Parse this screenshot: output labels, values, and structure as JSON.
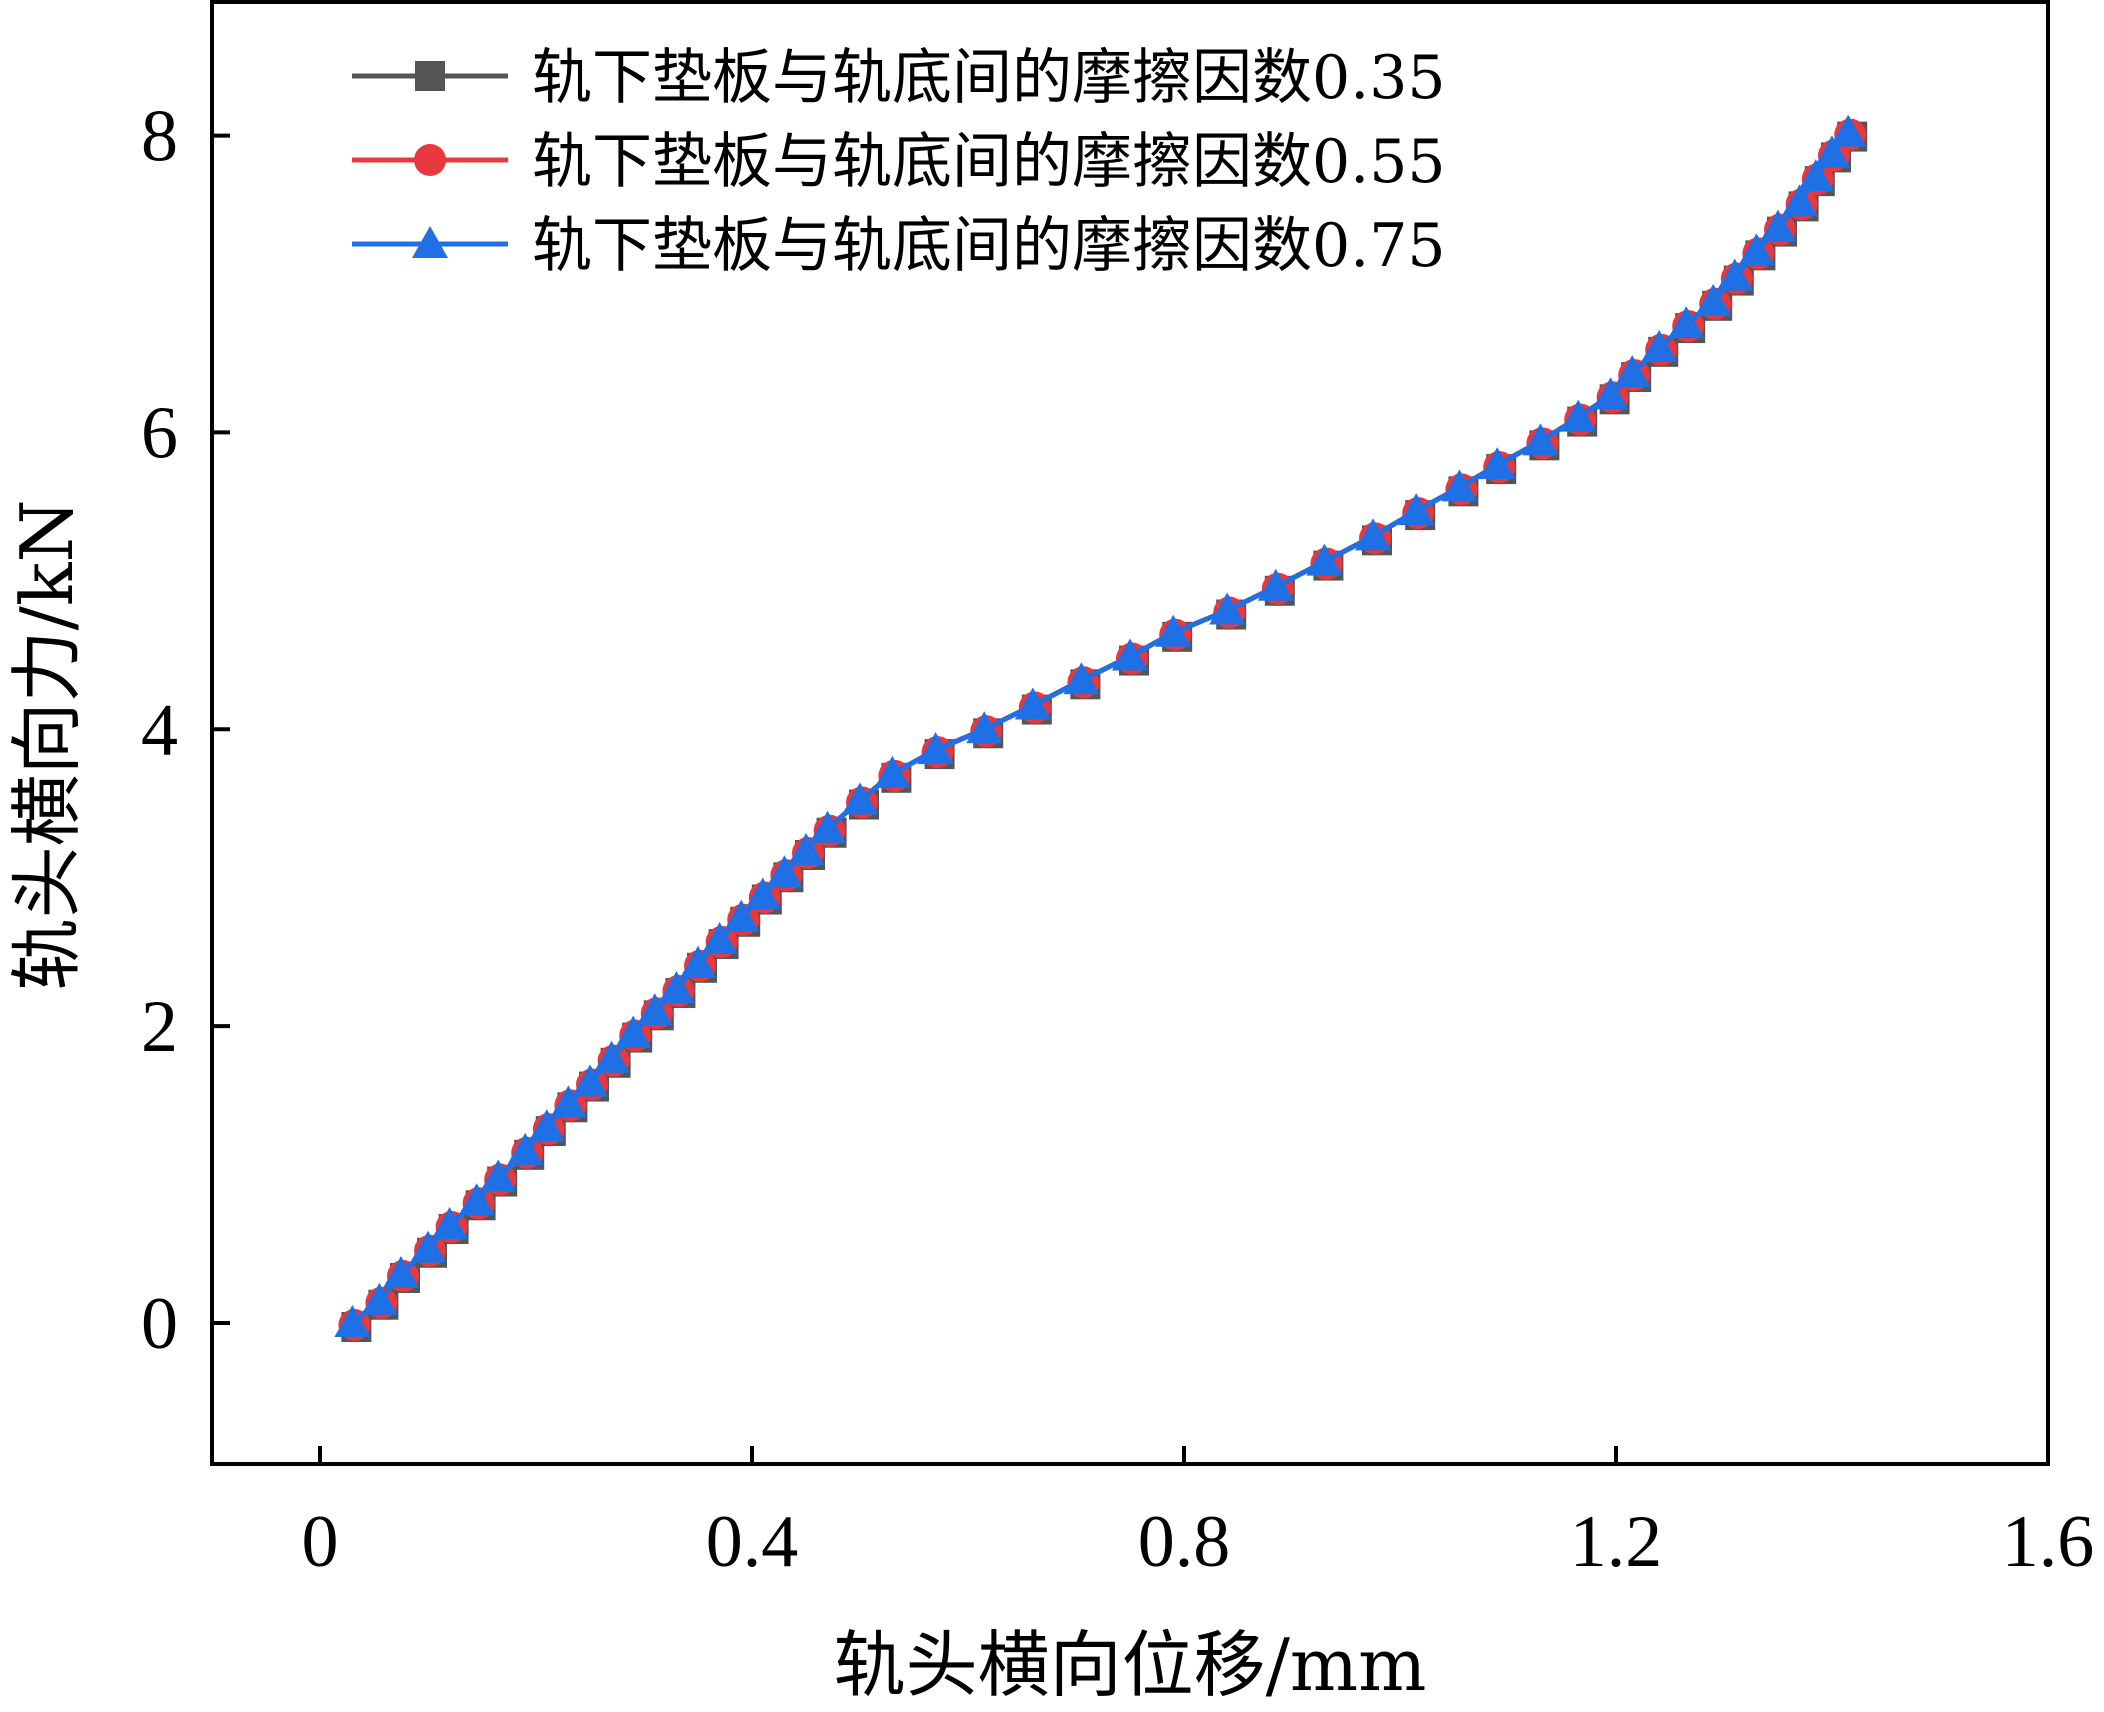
{
  "chart_data": {
    "type": "line",
    "title": "",
    "xlabel": "轨头横向位移/mm",
    "ylabel": "轨头横向力/kN",
    "xlim": [
      -0.1,
      1.6
    ],
    "ylim": [
      -0.95,
      8.9
    ],
    "xticks": [
      0,
      0.4,
      0.8,
      1.2,
      1.6
    ],
    "xtick_labels": [
      "0",
      "0.4",
      "0.8",
      "1.2",
      "1.6"
    ],
    "yticks": [
      0,
      2,
      4,
      6,
      8
    ],
    "ytick_labels": [
      "0",
      "2",
      "4",
      "6",
      "8"
    ],
    "grid": false,
    "legend_position": "top-left",
    "x": [
      0.03,
      0.055,
      0.075,
      0.1,
      0.12,
      0.145,
      0.165,
      0.19,
      0.21,
      0.23,
      0.25,
      0.27,
      0.29,
      0.31,
      0.33,
      0.35,
      0.37,
      0.39,
      0.41,
      0.43,
      0.45,
      0.47,
      0.5,
      0.53,
      0.57,
      0.615,
      0.66,
      0.705,
      0.75,
      0.79,
      0.84,
      0.885,
      0.93,
      0.975,
      1.015,
      1.055,
      1.09,
      1.13,
      1.165,
      1.195,
      1.215,
      1.24,
      1.265,
      1.29,
      1.31,
      1.33,
      1.35,
      1.37,
      1.385,
      1.4,
      1.415
    ],
    "series": [
      {
        "name": "轨下垫板与轨底间的摩擦因数0.35",
        "color": "#555555",
        "marker": "square",
        "values": [
          0.0,
          0.15,
          0.33,
          0.5,
          0.66,
          0.82,
          0.98,
          1.16,
          1.32,
          1.48,
          1.62,
          1.78,
          1.95,
          2.1,
          2.25,
          2.42,
          2.58,
          2.73,
          2.88,
          3.03,
          3.18,
          3.33,
          3.52,
          3.7,
          3.86,
          4.0,
          4.16,
          4.33,
          4.49,
          4.65,
          4.8,
          4.96,
          5.13,
          5.3,
          5.47,
          5.63,
          5.78,
          5.94,
          6.1,
          6.25,
          6.4,
          6.57,
          6.73,
          6.88,
          7.05,
          7.22,
          7.38,
          7.55,
          7.72,
          7.88,
          8.02
        ]
      },
      {
        "name": "轨下垫板与轨底间的摩擦因数0.55",
        "color": "#e8383d",
        "marker": "circle",
        "values": [
          0.0,
          0.15,
          0.33,
          0.5,
          0.66,
          0.82,
          0.98,
          1.16,
          1.32,
          1.48,
          1.62,
          1.78,
          1.95,
          2.1,
          2.25,
          2.42,
          2.58,
          2.73,
          2.88,
          3.03,
          3.18,
          3.33,
          3.52,
          3.7,
          3.86,
          4.0,
          4.16,
          4.33,
          4.49,
          4.65,
          4.8,
          4.96,
          5.13,
          5.3,
          5.47,
          5.63,
          5.78,
          5.94,
          6.1,
          6.25,
          6.4,
          6.57,
          6.73,
          6.88,
          7.05,
          7.22,
          7.38,
          7.55,
          7.72,
          7.88,
          8.02
        ]
      },
      {
        "name": "轨下垫板与轨底间的摩擦因数0.75",
        "color": "#1f6fe5",
        "marker": "triangle",
        "values": [
          0.0,
          0.15,
          0.33,
          0.5,
          0.66,
          0.82,
          0.98,
          1.16,
          1.32,
          1.48,
          1.62,
          1.78,
          1.95,
          2.1,
          2.25,
          2.42,
          2.58,
          2.73,
          2.88,
          3.03,
          3.18,
          3.33,
          3.52,
          3.7,
          3.86,
          4.0,
          4.16,
          4.33,
          4.49,
          4.65,
          4.8,
          4.96,
          5.13,
          5.3,
          5.47,
          5.63,
          5.78,
          5.94,
          6.1,
          6.25,
          6.4,
          6.57,
          6.73,
          6.88,
          7.05,
          7.22,
          7.38,
          7.55,
          7.72,
          7.88,
          8.02
        ]
      }
    ]
  }
}
